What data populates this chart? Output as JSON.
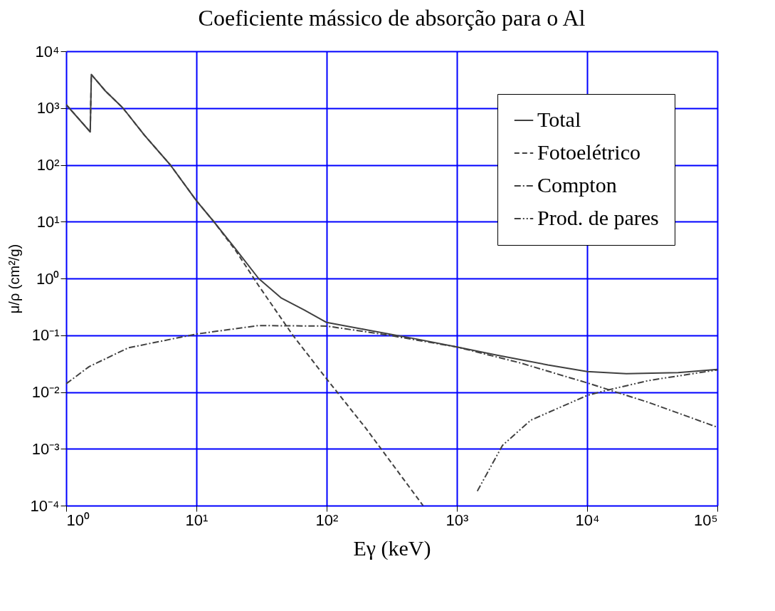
{
  "chart_data": {
    "type": "line",
    "title": "Coeficiente mássico de absorção para o Al",
    "xlabel": "Eγ (keV)",
    "ylabel": "μ/ρ (cm²/g)",
    "log": "xy",
    "grid": true,
    "legend": "top right",
    "xlim": [
      1,
      100000
    ],
    "ylim": [
      0.0001,
      10000
    ],
    "xticks": [
      {
        "value": 1,
        "label": "10⁰"
      },
      {
        "value": 10,
        "label": "10¹"
      },
      {
        "value": 100,
        "label": "10²"
      },
      {
        "value": 1000,
        "label": "10³"
      },
      {
        "value": 10000,
        "label": "10⁴"
      },
      {
        "value": 100000,
        "label": "10⁵"
      }
    ],
    "yticks": [
      {
        "value": 0.0001,
        "label": "10⁻⁴"
      },
      {
        "value": 0.001,
        "label": "10⁻³"
      },
      {
        "value": 0.01,
        "label": "10⁻²"
      },
      {
        "value": 0.1,
        "label": "10⁻¹"
      },
      {
        "value": 1,
        "label": "10⁰"
      },
      {
        "value": 10,
        "label": "10¹"
      },
      {
        "value": 100,
        "label": "10²"
      },
      {
        "value": 1000,
        "label": "10³"
      },
      {
        "value": 10000,
        "label": "10⁴"
      }
    ],
    "series": [
      {
        "name": "Total",
        "color": "#404040",
        "line_style": "solid",
        "x": [
          1,
          1.53,
          1.56,
          2,
          2.73,
          4,
          6.3,
          10,
          13.6,
          20,
          30,
          45,
          67,
          100,
          200,
          500,
          1000,
          2000,
          5000,
          10000,
          20000,
          50000,
          100000
        ],
        "values": [
          1150,
          380,
          3900,
          2000,
          1000,
          330,
          100,
          23.4,
          10,
          3.3,
          1,
          0.45,
          0.28,
          0.168,
          0.125,
          0.085,
          0.062,
          0.045,
          0.03,
          0.023,
          0.021,
          0.022,
          0.025
        ]
      },
      {
        "name": "Fotoelétrico",
        "color": "#404040",
        "line_style": "dashed",
        "x": [
          1,
          1.53,
          1.56,
          2,
          2.73,
          4,
          6.3,
          10,
          13.6,
          20,
          30,
          55,
          100,
          200,
          550
        ],
        "values": [
          1150,
          380,
          3900,
          2000,
          1000,
          330,
          100,
          23.4,
          10,
          3.1,
          0.75,
          0.1,
          0.017,
          0.0023,
          0.0001
        ]
      },
      {
        "name": "Compton",
        "color": "#404040",
        "line_style": "dashdot",
        "x": [
          1,
          1.5,
          3,
          10,
          30,
          100,
          300,
          1000,
          3000,
          10000,
          30000,
          100000
        ],
        "values": [
          0.014,
          0.028,
          0.06,
          0.105,
          0.148,
          0.145,
          0.1,
          0.062,
          0.033,
          0.0145,
          0.0065,
          0.0024
        ]
      },
      {
        "name": "Prod. de pares",
        "color": "#404040",
        "line_style": "dashdotdot",
        "x": [
          1435,
          2240,
          3700,
          10000,
          14800,
          30000,
          100000
        ],
        "values": [
          0.00018,
          0.00115,
          0.0032,
          0.0087,
          0.011,
          0.016,
          0.0245
        ]
      }
    ]
  }
}
